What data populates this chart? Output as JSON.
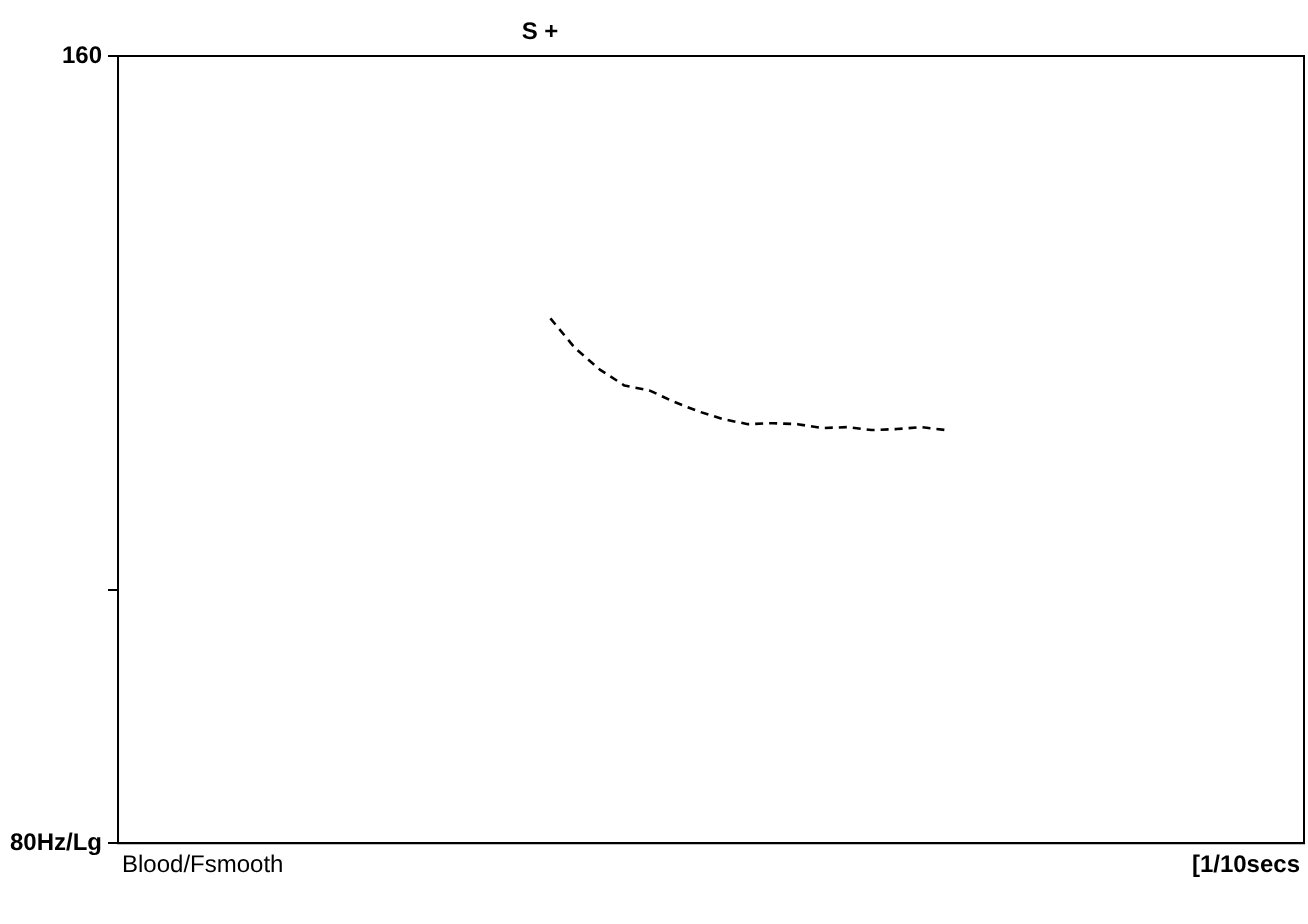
{
  "chart_data": {
    "type": "line",
    "xlabel": "[1/10secs",
    "annotations": [
      "Blood/Fsmooth",
      "S +"
    ],
    "categories": [
      null,
      null,
      null,
      null,
      null,
      null,
      null,
      null,
      null,
      null,
      null,
      null,
      null,
      null,
      null,
      null,
      null,
      null,
      null,
      null,
      null,
      null,
      null,
      null,
      null,
      null,
      null,
      null,
      null,
      null,
      null,
      null,
      null,
      null,
      null,
      null,
      null,
      null,
      null,
      null,
      null,
      null,
      null,
      null,
      null,
      null,
      null,
      null
    ],
    "series": [
      {
        "color": "#000000",
        "values": [
          null,
          null,
          null,
          null,
          null,
          null,
          null,
          null,
          null,
          null,
          null,
          null,
          null,
          null,
          null,
          null,
          null,
          127,
          123.7,
          121.4,
          119.7,
          119.2,
          118,
          117,
          116.2,
          115.7,
          115.8,
          115.7,
          115.3,
          115.4,
          115.1,
          115.2,
          115.4,
          115.1,
          null,
          null,
          null,
          null,
          null,
          null,
          null,
          null,
          null,
          null,
          null,
          null,
          null,
          null
        ]
      }
    ],
    "ylim": [
      80,
      160
    ],
    "yticks": [
      {
        "value": 80,
        "label": "80Hz/Lg"
      },
      {
        "value": 100,
        "label": null
      },
      {
        "value": 160,
        "label": "160"
      }
    ],
    "log": "y",
    "grid": false,
    "legend": false,
    "marker": "none",
    "line_style": "dashed"
  }
}
